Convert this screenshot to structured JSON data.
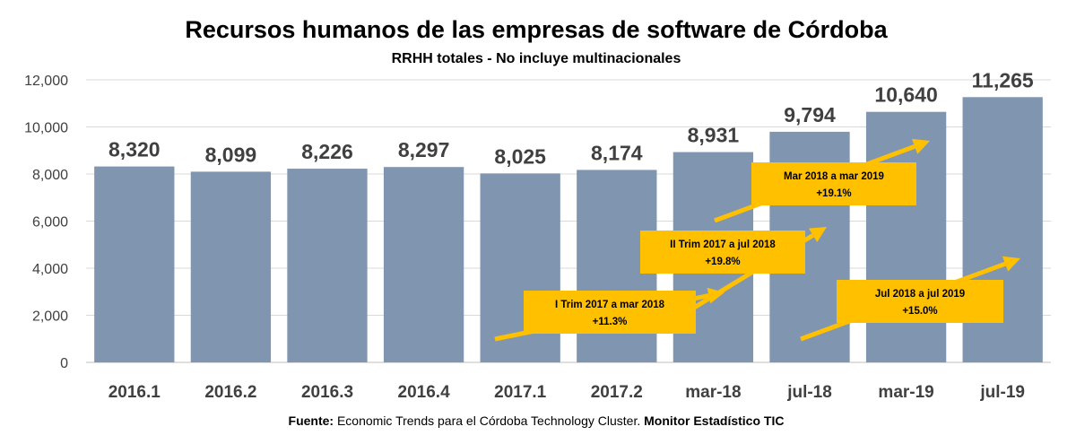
{
  "chart_data": {
    "type": "bar",
    "title": "Recursos humanos de las empresas de software de Córdoba",
    "subtitle": "RRHH totales - No incluye multinacionales",
    "categories": [
      "2016.1",
      "2016.2",
      "2016.3",
      "2016.4",
      "2017.1",
      "2017.2",
      "mar-18",
      "jul-18",
      "mar-19",
      "jul-19"
    ],
    "values": [
      8320,
      8099,
      8226,
      8297,
      8025,
      8174,
      8931,
      9794,
      10640,
      11265
    ],
    "data_labels": [
      "8,320",
      "8,099",
      "8,226",
      "8,297",
      "8,025",
      "8,174",
      "8,931",
      "9,794",
      "10,640",
      "11,265"
    ],
    "ylim": [
      0,
      12000
    ],
    "yticks": [
      "0",
      "2,000",
      "4,000",
      "6,000",
      "8,000",
      "10,000",
      "12,000"
    ],
    "ytick_values": [
      0,
      2000,
      4000,
      6000,
      8000,
      10000,
      12000
    ],
    "grid": true,
    "bar_color": "#8096B0",
    "annotations": [
      {
        "line1": "I Trim 2017 a mar 2018",
        "line2": "+11.3%",
        "from_category": "2017.1",
        "to_category": "mar-18"
      },
      {
        "line1": "II Trim 2017 a jul 2018",
        "line2": "+19.8%",
        "from_category": "2017.2",
        "to_category": "jul-18"
      },
      {
        "line1": "Mar 2018 a mar 2019",
        "line2": "+19.1%",
        "from_category": "mar-18",
        "to_category": "mar-19"
      },
      {
        "line1": "Jul 2018 a jul 2019",
        "line2": "+15.0%",
        "from_category": "jul-18",
        "to_category": "jul-19"
      }
    ],
    "annotation_color": "#FFC000"
  },
  "source": {
    "label": "Fuente:",
    "text": " Economic Trends para el Córdoba Technology Cluster. ",
    "emphasis": "Monitor Estadístico TIC"
  }
}
